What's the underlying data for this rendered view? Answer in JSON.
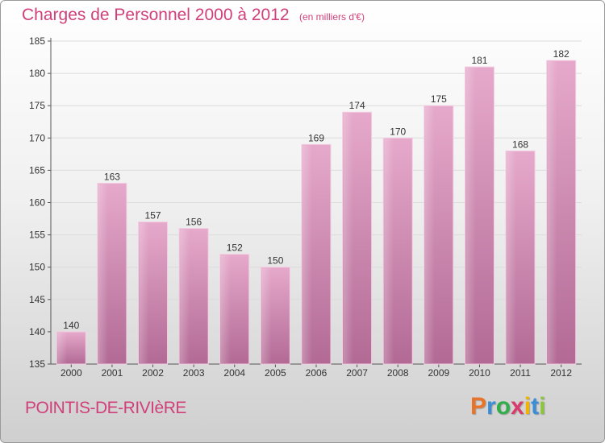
{
  "header": {
    "title": "Charges de Personnel 2000 à 2012",
    "unit_note": "(en milliers d'€)"
  },
  "footer": {
    "place_name": "POINTIS-DE-RIVIèRE",
    "brand": {
      "letters": [
        "P",
        "r",
        "o",
        "x",
        "i",
        "t",
        "i"
      ],
      "colors": [
        "#e8742a",
        "#3b8ed6",
        "#2fae4a",
        "#d83b6c",
        "#f0b400",
        "#3b8ed6",
        "#8cc63f"
      ]
    }
  },
  "chart_data": {
    "type": "bar",
    "categories": [
      "2000",
      "2001",
      "2002",
      "2003",
      "2004",
      "2005",
      "2006",
      "2007",
      "2008",
      "2009",
      "2010",
      "2011",
      "2012"
    ],
    "values": [
      140,
      163,
      157,
      156,
      152,
      150,
      169,
      174,
      170,
      175,
      181,
      168,
      182
    ],
    "ylim": [
      135,
      185
    ],
    "yticks": [
      135,
      140,
      145,
      150,
      155,
      160,
      165,
      170,
      175,
      180,
      185
    ],
    "grid": true,
    "bar_color": "#d98bb4",
    "title": "Charges de Personnel 2000 à 2012",
    "xlabel": "",
    "ylabel": ""
  }
}
